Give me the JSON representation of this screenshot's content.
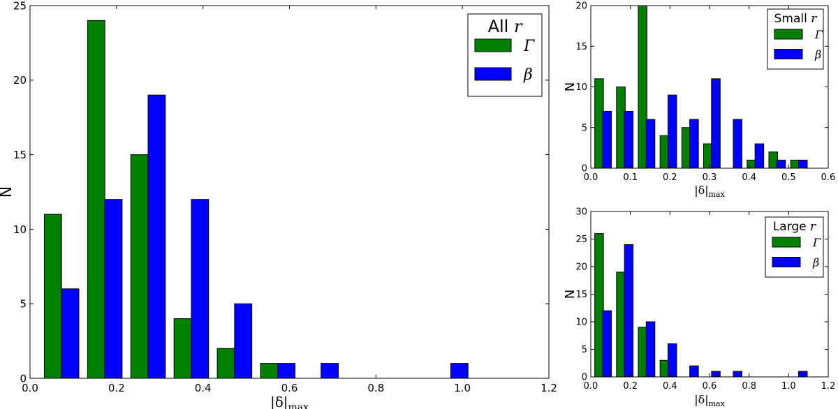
{
  "chart_data": [
    {
      "type": "bar",
      "panel": "all",
      "legend": {
        "title": "All r",
        "placement": "top-right"
      },
      "xlabel": "|δ|max",
      "ylabel": "N",
      "xlim": [
        0.0,
        1.2
      ],
      "ylim": [
        0,
        25
      ],
      "xticks": [
        "0.0",
        "0.2",
        "0.4",
        "0.6",
        "0.8",
        "1.0",
        "1.2"
      ],
      "yticks": [
        "0",
        "5",
        "10",
        "15",
        "20",
        "25"
      ],
      "bin_width": 0.1,
      "series": [
        {
          "name": "Γ",
          "color": "#007f00",
          "bins": [
            {
              "x0": 0.033,
              "value": 11
            },
            {
              "x0": 0.133,
              "value": 24
            },
            {
              "x0": 0.233,
              "value": 15
            },
            {
              "x0": 0.333,
              "value": 4
            },
            {
              "x0": 0.433,
              "value": 2
            },
            {
              "x0": 0.533,
              "value": 1
            }
          ]
        },
        {
          "name": "β",
          "color": "#0000ff",
          "bins": [
            {
              "x0": 0.073,
              "value": 6
            },
            {
              "x0": 0.173,
              "value": 12
            },
            {
              "x0": 0.273,
              "value": 19
            },
            {
              "x0": 0.373,
              "value": 12
            },
            {
              "x0": 0.473,
              "value": 5
            },
            {
              "x0": 0.573,
              "value": 1
            },
            {
              "x0": 0.673,
              "value": 1
            },
            {
              "x0": 0.973,
              "value": 1
            }
          ]
        }
      ]
    },
    {
      "type": "bar",
      "panel": "small",
      "legend": {
        "title": "Small r",
        "placement": "top-right"
      },
      "xlabel": "|δ|max",
      "ylabel": "N",
      "xlim": [
        0.0,
        0.6
      ],
      "ylim": [
        0,
        20
      ],
      "xticks": [
        "0.0",
        "0.1",
        "0.2",
        "0.3",
        "0.4",
        "0.5",
        "0.6"
      ],
      "yticks": [
        "0",
        "5",
        "10",
        "15",
        "20"
      ],
      "series": [
        {
          "name": "Γ",
          "color": "#007f00",
          "bins": [
            {
              "x0": 0.01,
              "value": 11
            },
            {
              "x0": 0.065,
              "value": 10
            },
            {
              "x0": 0.12,
              "value": 20
            },
            {
              "x0": 0.175,
              "value": 4
            },
            {
              "x0": 0.23,
              "value": 5
            },
            {
              "x0": 0.285,
              "value": 3
            },
            {
              "x0": 0.395,
              "value": 1
            },
            {
              "x0": 0.45,
              "value": 2
            },
            {
              "x0": 0.505,
              "value": 1
            }
          ]
        },
        {
          "name": "β",
          "color": "#0000ff",
          "bins": [
            {
              "x0": 0.03,
              "value": 7
            },
            {
              "x0": 0.085,
              "value": 7
            },
            {
              "x0": 0.14,
              "value": 6
            },
            {
              "x0": 0.195,
              "value": 9
            },
            {
              "x0": 0.25,
              "value": 6
            },
            {
              "x0": 0.305,
              "value": 11
            },
            {
              "x0": 0.36,
              "value": 6
            },
            {
              "x0": 0.415,
              "value": 3
            },
            {
              "x0": 0.47,
              "value": 1
            },
            {
              "x0": 0.525,
              "value": 1
            }
          ]
        }
      ]
    },
    {
      "type": "bar",
      "panel": "large",
      "legend": {
        "title": "Large r",
        "placement": "top-right"
      },
      "xlabel": "|δ|max",
      "ylabel": "N",
      "xlim": [
        0.0,
        1.2
      ],
      "ylim": [
        0,
        30
      ],
      "xticks": [
        "0.0",
        "0.2",
        "0.4",
        "0.6",
        "0.8",
        "1.0",
        "1.2"
      ],
      "yticks": [
        "0",
        "5",
        "10",
        "15",
        "20",
        "25",
        "30"
      ],
      "series": [
        {
          "name": "Γ",
          "color": "#007f00",
          "bins": [
            {
              "x0": 0.02,
              "value": 26
            },
            {
              "x0": 0.13,
              "value": 19
            },
            {
              "x0": 0.24,
              "value": 9
            },
            {
              "x0": 0.35,
              "value": 3
            }
          ]
        },
        {
          "name": "β",
          "color": "#0000ff",
          "bins": [
            {
              "x0": 0.06,
              "value": 12
            },
            {
              "x0": 0.17,
              "value": 24
            },
            {
              "x0": 0.28,
              "value": 10
            },
            {
              "x0": 0.39,
              "value": 6
            },
            {
              "x0": 0.5,
              "value": 2
            },
            {
              "x0": 0.61,
              "value": 1
            },
            {
              "x0": 0.72,
              "value": 1
            },
            {
              "x0": 1.05,
              "value": 1
            }
          ]
        }
      ]
    }
  ]
}
